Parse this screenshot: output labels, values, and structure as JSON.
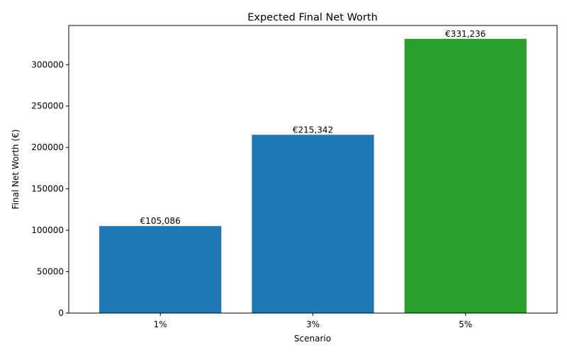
{
  "chart_data": {
    "type": "bar",
    "title": "Expected Final Net Worth",
    "xlabel": "Scenario",
    "ylabel": "Final Net Worth (€)",
    "categories": [
      "1%",
      "3%",
      "5%"
    ],
    "values": [
      105086,
      215342,
      331236
    ],
    "data_labels": [
      "€105,086",
      "€215,342",
      "€331,236"
    ],
    "bar_colors": [
      "#1f77b4",
      "#1f77b4",
      "#2ca02c"
    ],
    "ylim": [
      0,
      347298
    ],
    "yticks": [
      0,
      50000,
      100000,
      150000,
      200000,
      250000,
      300000
    ],
    "grid": false,
    "legend": "none"
  }
}
